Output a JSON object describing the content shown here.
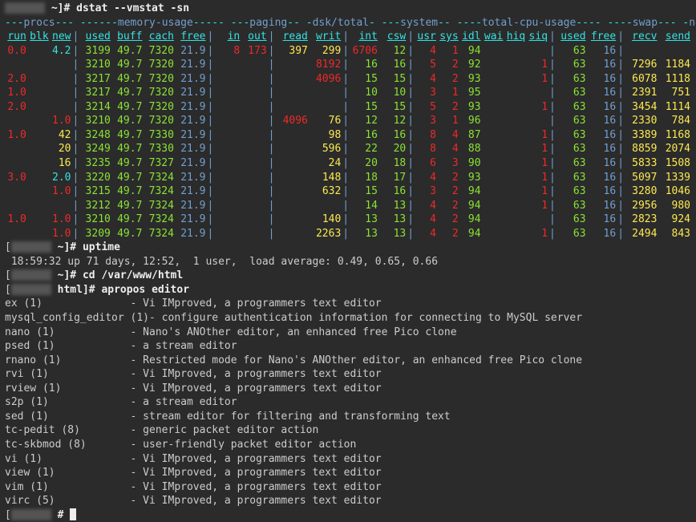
{
  "prompt_host": "[",
  "prompt_close": "]#",
  "cmd1": "dstat --vmstat -sn",
  "group_header": "---procs--- ------memory-usage----- ---paging-- -dsk/total- ---system-- ----total-cpu-usage---- ----swap--- -net/total-",
  "col_header": [
    "run",
    "blk",
    "new",
    "used",
    "buff",
    "cach",
    "free",
    "in",
    "out",
    "read",
    "writ",
    "int",
    "csw",
    "usr",
    "sys",
    "idl",
    "wai",
    "hiq",
    "siq",
    "used",
    "free",
    "recv",
    "send"
  ],
  "rows": [
    {
      "run": "0.0",
      "blk": "",
      "new": "4.2",
      "used": "3199",
      "buff": "49.7",
      "cach": "7320",
      "free": "21.9",
      "pin": "8",
      "pout": "173",
      "read": "397",
      "writ": "299",
      "int": "6706",
      "csw": "12",
      "usr": "4",
      "sys": "1",
      "idl": "94",
      "wai": "",
      "hiq": "",
      "siq": "",
      "sused": "63",
      "sfree": "16",
      "recv": "",
      "send": ""
    },
    {
      "run": "",
      "blk": "",
      "new": "",
      "used": "3210",
      "buff": "49.7",
      "cach": "7320",
      "free": "21.9",
      "pin": "",
      "pout": "",
      "read": "",
      "writ": "8192",
      "int": "16",
      "csw": "16",
      "usr": "5",
      "sys": "2",
      "idl": "92",
      "wai": "",
      "hiq": "",
      "siq": "1",
      "sused": "63",
      "sfree": "16",
      "recv": "7296",
      "send": "1184"
    },
    {
      "run": "2.0",
      "blk": "",
      "new": "",
      "used": "3217",
      "buff": "49.7",
      "cach": "7320",
      "free": "21.9",
      "pin": "",
      "pout": "",
      "read": "",
      "writ": "4096",
      "int": "15",
      "csw": "15",
      "usr": "4",
      "sys": "2",
      "idl": "93",
      "wai": "",
      "hiq": "",
      "siq": "1",
      "sused": "63",
      "sfree": "16",
      "recv": "6078",
      "send": "1118"
    },
    {
      "run": "1.0",
      "blk": "",
      "new": "",
      "used": "3217",
      "buff": "49.7",
      "cach": "7320",
      "free": "21.9",
      "pin": "",
      "pout": "",
      "read": "",
      "writ": "",
      "int": "10",
      "csw": "10",
      "usr": "3",
      "sys": "1",
      "idl": "95",
      "wai": "",
      "hiq": "",
      "siq": "",
      "sused": "63",
      "sfree": "16",
      "recv": "2391",
      "send": "751"
    },
    {
      "run": "2.0",
      "blk": "",
      "new": "",
      "used": "3214",
      "buff": "49.7",
      "cach": "7320",
      "free": "21.9",
      "pin": "",
      "pout": "",
      "read": "",
      "writ": "",
      "int": "15",
      "csw": "15",
      "usr": "5",
      "sys": "2",
      "idl": "93",
      "wai": "",
      "hiq": "",
      "siq": "1",
      "sused": "63",
      "sfree": "16",
      "recv": "3454",
      "send": "1114"
    },
    {
      "run": "",
      "blk": "",
      "new": "1.0",
      "used": "3210",
      "buff": "49.7",
      "cach": "7320",
      "free": "21.9",
      "pin": "",
      "pout": "",
      "read": "4096",
      "writ": "76",
      "int": "12",
      "csw": "12",
      "usr": "3",
      "sys": "1",
      "idl": "96",
      "wai": "",
      "hiq": "",
      "siq": "",
      "sused": "63",
      "sfree": "16",
      "recv": "2330",
      "send": "784"
    },
    {
      "run": "1.0",
      "blk": "",
      "new": "42",
      "used": "3248",
      "buff": "49.7",
      "cach": "7330",
      "free": "21.9",
      "pin": "",
      "pout": "",
      "read": "",
      "writ": "98",
      "int": "16",
      "csw": "16",
      "usr": "8",
      "sys": "4",
      "idl": "87",
      "wai": "",
      "hiq": "",
      "siq": "1",
      "sused": "63",
      "sfree": "16",
      "recv": "3389",
      "send": "1168"
    },
    {
      "run": "",
      "blk": "",
      "new": "20",
      "used": "3249",
      "buff": "49.7",
      "cach": "7330",
      "free": "21.9",
      "pin": "",
      "pout": "",
      "read": "",
      "writ": "596",
      "int": "22",
      "csw": "20",
      "usr": "8",
      "sys": "4",
      "idl": "88",
      "wai": "",
      "hiq": "",
      "siq": "1",
      "sused": "63",
      "sfree": "16",
      "recv": "8859",
      "send": "2074"
    },
    {
      "run": "",
      "blk": "",
      "new": "16",
      "used": "3235",
      "buff": "49.7",
      "cach": "7327",
      "free": "21.9",
      "pin": "",
      "pout": "",
      "read": "",
      "writ": "24",
      "int": "20",
      "csw": "18",
      "usr": "6",
      "sys": "3",
      "idl": "90",
      "wai": "",
      "hiq": "",
      "siq": "1",
      "sused": "63",
      "sfree": "16",
      "recv": "5833",
      "send": "1508"
    },
    {
      "run": "3.0",
      "blk": "",
      "new": "2.0",
      "used": "3220",
      "buff": "49.7",
      "cach": "7324",
      "free": "21.9",
      "pin": "",
      "pout": "",
      "read": "",
      "writ": "148",
      "int": "18",
      "csw": "17",
      "usr": "4",
      "sys": "2",
      "idl": "93",
      "wai": "",
      "hiq": "",
      "siq": "1",
      "sused": "63",
      "sfree": "16",
      "recv": "5097",
      "send": "1339"
    },
    {
      "run": "",
      "blk": "",
      "new": "1.0",
      "used": "3215",
      "buff": "49.7",
      "cach": "7324",
      "free": "21.9",
      "pin": "",
      "pout": "",
      "read": "",
      "writ": "632",
      "int": "15",
      "csw": "16",
      "usr": "3",
      "sys": "2",
      "idl": "94",
      "wai": "",
      "hiq": "",
      "siq": "1",
      "sused": "63",
      "sfree": "16",
      "recv": "3280",
      "send": "1046"
    },
    {
      "run": "",
      "blk": "",
      "new": "",
      "used": "3212",
      "buff": "49.7",
      "cach": "7324",
      "free": "21.9",
      "pin": "",
      "pout": "",
      "read": "",
      "writ": "",
      "int": "14",
      "csw": "13",
      "usr": "4",
      "sys": "2",
      "idl": "94",
      "wai": "",
      "hiq": "",
      "siq": "1",
      "sused": "63",
      "sfree": "16",
      "recv": "2956",
      "send": "980"
    },
    {
      "run": "1.0",
      "blk": "",
      "new": "1.0",
      "used": "3210",
      "buff": "49.7",
      "cach": "7324",
      "free": "21.9",
      "pin": "",
      "pout": "",
      "read": "",
      "writ": "140",
      "int": "13",
      "csw": "13",
      "usr": "4",
      "sys": "2",
      "idl": "94",
      "wai": "",
      "hiq": "",
      "siq": "",
      "sused": "63",
      "sfree": "16",
      "recv": "2823",
      "send": "924"
    },
    {
      "run": "",
      "blk": "",
      "new": "1.0",
      "used": "3209",
      "buff": "49.7",
      "cach": "7324",
      "free": "21.9",
      "pin": "",
      "pout": "",
      "read": "",
      "writ": "2263",
      "int": "13",
      "csw": "13",
      "usr": "4",
      "sys": "2",
      "idl": "94",
      "wai": "",
      "hiq": "",
      "siq": "1",
      "sused": "63",
      "sfree": "16",
      "recv": "2494",
      "send": "843"
    }
  ],
  "cmd2": "uptime",
  "uptime_line": " 18:59:32 up 71 days, 12:52,  1 user,  load average: 0.49, 0.65, 0.66",
  "cmd3": "cd /var/www/html",
  "prompt_html": "html]#",
  "cmd4": "apropos editor",
  "apropos": [
    [
      "ex (1)",
      "- Vi IMproved, a programmers text editor"
    ],
    [
      "mysql_config_editor (1)",
      "- configure authentication information for connecting to MySQL server"
    ],
    [
      "nano (1)",
      "- Nano's ANOther editor, an enhanced free Pico clone"
    ],
    [
      "psed (1)",
      "- a stream editor"
    ],
    [
      "rnano (1)",
      "- Restricted mode for Nano's ANOther editor, an enhanced free Pico clone"
    ],
    [
      "rvi (1)",
      "- Vi IMproved, a programmers text editor"
    ],
    [
      "rview (1)",
      "- Vi IMproved, a programmers text editor"
    ],
    [
      "s2p (1)",
      "- a stream editor"
    ],
    [
      "sed (1)",
      "- stream editor for filtering and transforming text"
    ],
    [
      "tc-pedit (8)",
      "- generic packet editor action"
    ],
    [
      "tc-skbmod (8)",
      "- user-friendly packet editor action"
    ],
    [
      "vi (1)",
      "- Vi IMproved, a programmers text editor"
    ],
    [
      "view (1)",
      "- Vi IMproved, a programmers text editor"
    ],
    [
      "vim (1)",
      "- Vi IMproved, a programmers text editor"
    ],
    [
      "virc (5)",
      "- Vi IMproved, a programmers text editor"
    ]
  ],
  "colors": {
    "bg": "#2b2b2b",
    "fg": "#cccccc",
    "cyan": "#34e2e2",
    "red": "#ef2929",
    "green": "#8ae234",
    "yellow": "#fce94f",
    "blue": "#729fcf",
    "white": "#eeeeee"
  }
}
